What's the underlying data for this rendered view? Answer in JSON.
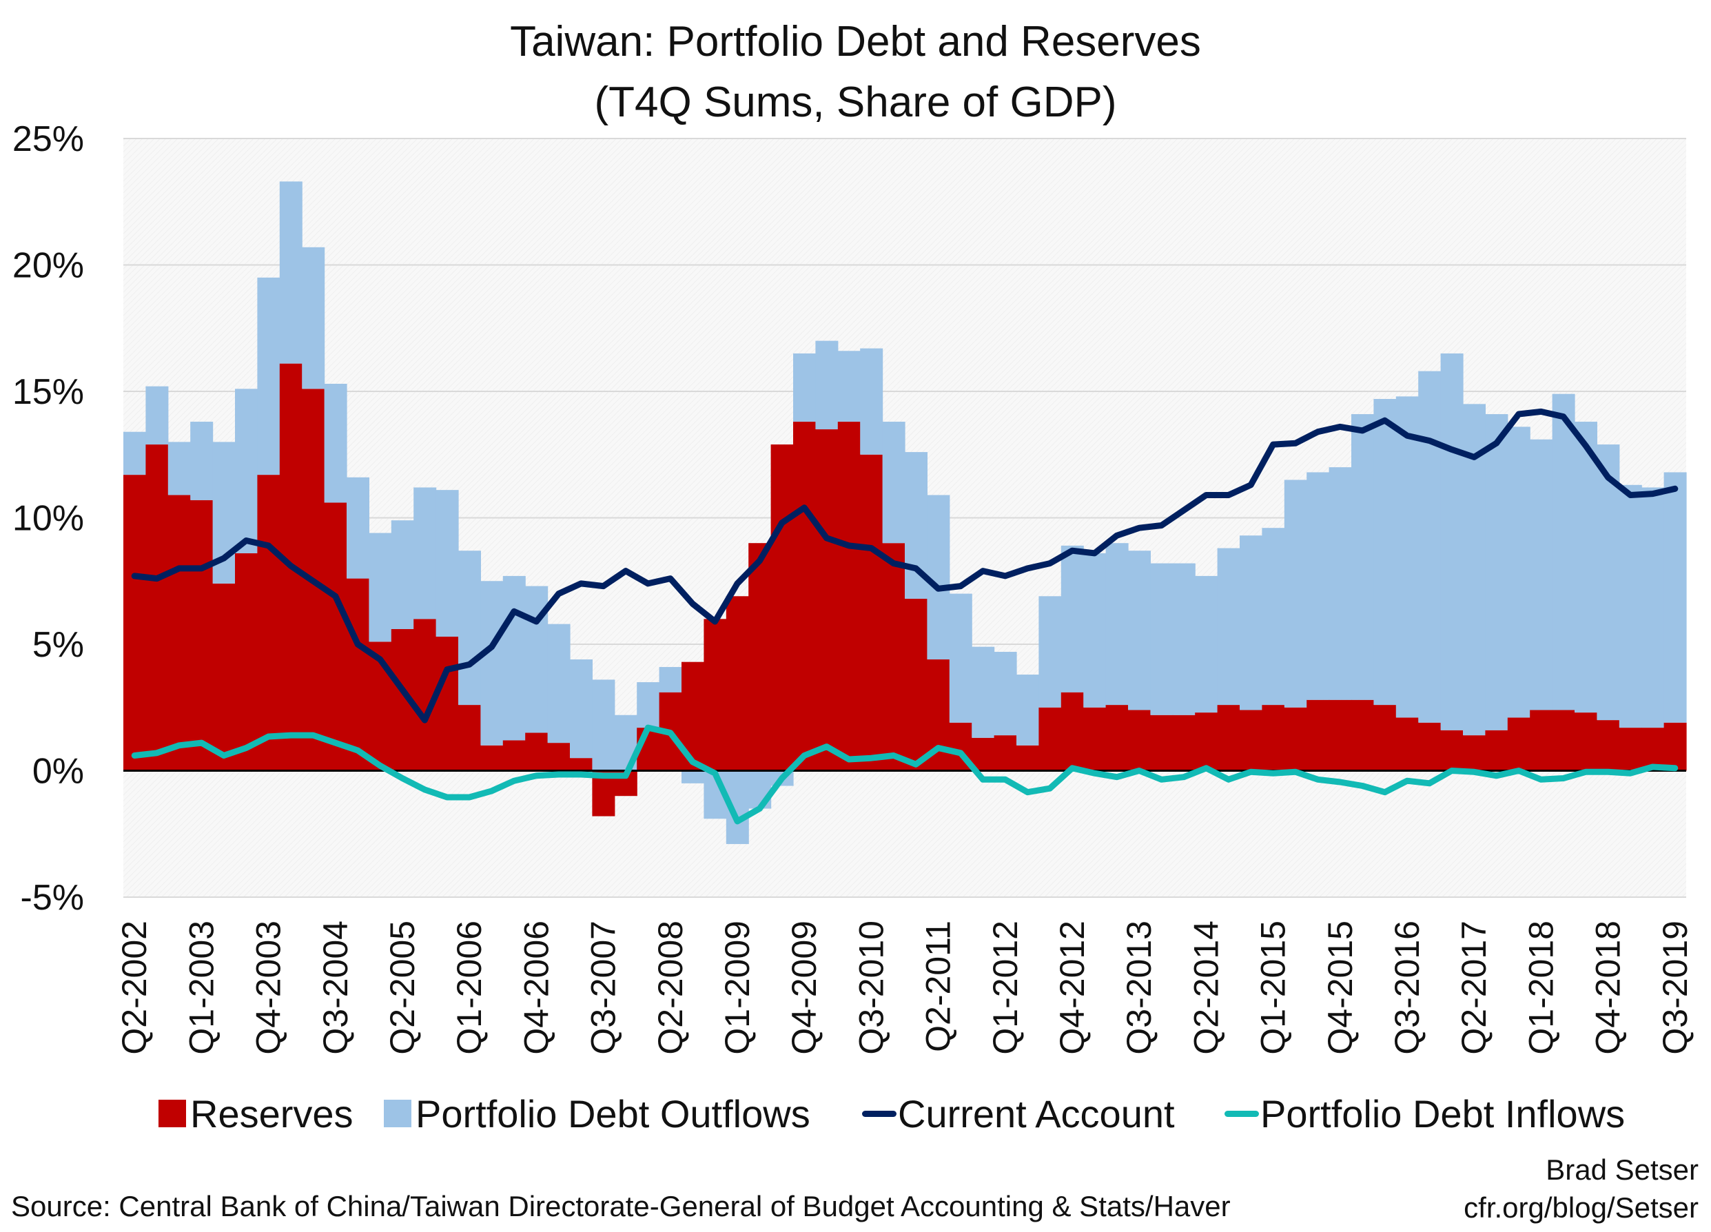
{
  "chart_data": {
    "type": "bar",
    "title": "Taiwan: Portfolio Debt and Reserves",
    "subtitle": "(T4Q Sums, Share of GDP)",
    "xlabel": "",
    "ylabel": "",
    "ylim": [
      -5,
      25
    ],
    "y_ticks": [
      "25%",
      "20%",
      "15%",
      "10%",
      "5%",
      "0%",
      "-5%"
    ],
    "y_tick_values": [
      25,
      20,
      15,
      10,
      5,
      0,
      -5
    ],
    "grid": true,
    "legend_position": "bottom",
    "x_tick_labels": [
      "Q2-2002",
      "Q1-2003",
      "Q4-2003",
      "Q3-2004",
      "Q2-2005",
      "Q1-2006",
      "Q4-2006",
      "Q3-2007",
      "Q2-2008",
      "Q1-2009",
      "Q4-2009",
      "Q3-2010",
      "Q2-2011",
      "Q1-2012",
      "Q4-2012",
      "Q3-2013",
      "Q2-2014",
      "Q1-2015",
      "Q4-2015",
      "Q3-2016",
      "Q2-2017",
      "Q1-2018",
      "Q4-2018",
      "Q3-2019"
    ],
    "x_tick_every": 3,
    "series": [
      {
        "name": "Reserves",
        "kind": "stacked-bar",
        "color": "#c00000",
        "values": [
          11.7,
          12.9,
          10.9,
          10.7,
          7.4,
          8.6,
          11.7,
          16.1,
          15.1,
          10.6,
          7.6,
          5.1,
          5.6,
          6.0,
          5.3,
          2.6,
          1.0,
          1.2,
          1.5,
          1.1,
          0.5,
          -1.8,
          -1.0,
          1.7,
          3.1,
          4.3,
          6.0,
          6.9,
          9.0,
          12.9,
          13.8,
          13.5,
          13.8,
          12.5,
          9.0,
          6.8,
          4.4,
          1.9,
          1.3,
          1.4,
          1.0,
          2.5,
          3.1,
          2.5,
          2.6,
          2.4,
          2.2,
          2.2,
          2.3,
          2.6,
          2.4,
          2.6,
          2.5,
          2.8,
          2.8,
          2.8,
          2.6,
          2.1,
          1.9,
          1.6,
          1.4,
          1.6,
          2.1,
          2.4,
          2.4,
          2.3,
          2.0,
          1.7,
          1.7,
          1.9
        ]
      },
      {
        "name": "Portfolio Debt Outflows",
        "kind": "stacked-bar",
        "color": "#9dc3e6",
        "values": [
          1.7,
          2.3,
          2.1,
          3.1,
          5.6,
          6.5,
          7.8,
          7.2,
          5.6,
          4.7,
          4.0,
          4.3,
          4.3,
          5.2,
          5.8,
          6.1,
          6.5,
          6.5,
          5.8,
          4.7,
          3.9,
          3.6,
          2.2,
          1.8,
          1.0,
          -0.5,
          -1.9,
          -2.9,
          -1.5,
          -0.6,
          2.7,
          3.5,
          2.8,
          4.2,
          4.8,
          5.8,
          6.5,
          5.1,
          3.6,
          3.3,
          2.8,
          4.4,
          5.8,
          6.1,
          6.4,
          6.3,
          6.0,
          6.0,
          5.4,
          6.2,
          6.9,
          7.0,
          9.0,
          9.0,
          9.2,
          11.3,
          12.1,
          12.7,
          13.9,
          14.9,
          13.1,
          12.5,
          11.5,
          10.7,
          12.5,
          11.5,
          10.9,
          9.6,
          9.5,
          9.9
        ]
      },
      {
        "name": "Current Account",
        "kind": "line",
        "color": "#002060",
        "values": [
          7.7,
          7.6,
          8.0,
          8.0,
          8.4,
          9.1,
          8.9,
          8.1,
          7.5,
          6.9,
          5.0,
          4.4,
          3.2,
          2.0,
          4.0,
          4.2,
          4.9,
          6.3,
          5.9,
          7.0,
          7.4,
          7.3,
          7.9,
          7.4,
          7.6,
          6.6,
          5.9,
          7.4,
          8.3,
          9.8,
          10.4,
          9.2,
          8.9,
          8.8,
          8.2,
          8.0,
          7.2,
          7.3,
          7.9,
          7.7,
          8.0,
          8.2,
          8.7,
          8.6,
          9.3,
          9.6,
          9.7,
          10.3,
          10.9,
          10.9,
          11.3,
          12.9,
          12.95,
          13.4,
          13.6,
          13.45,
          13.85,
          13.25,
          13.05,
          12.7,
          12.4,
          12.95,
          14.1,
          14.2,
          14.0,
          12.85,
          11.6,
          10.9,
          10.95,
          11.15
        ]
      },
      {
        "name": "Portfolio Debt Inflows",
        "kind": "line",
        "color": "#12bab5",
        "values": [
          0.6,
          0.7,
          1.0,
          1.1,
          0.6,
          0.9,
          1.35,
          1.4,
          1.4,
          1.1,
          0.8,
          0.2,
          -0.3,
          -0.75,
          -1.05,
          -1.05,
          -0.8,
          -0.4,
          -0.2,
          -0.15,
          -0.15,
          -0.2,
          -0.2,
          1.7,
          1.5,
          0.35,
          -0.1,
          -2.0,
          -1.5,
          -0.3,
          0.6,
          0.95,
          0.45,
          0.5,
          0.6,
          0.25,
          0.9,
          0.7,
          -0.35,
          -0.35,
          -0.85,
          -0.7,
          0.1,
          -0.1,
          -0.25,
          0,
          -0.35,
          -0.25,
          0.1,
          -0.35,
          -0.05,
          -0.1,
          -0.05,
          -0.35,
          -0.45,
          -0.6,
          -0.85,
          -0.4,
          -0.5,
          0,
          -0.05,
          -0.2,
          0,
          -0.35,
          -0.3,
          -0.05,
          -0.05,
          -0.1,
          0.15,
          0.1
        ]
      }
    ]
  },
  "legend": {
    "reserves": "Reserves",
    "outflows": "Portfolio Debt Outflows",
    "current_account": "Current Account",
    "inflows": "Portfolio Debt Inflows"
  },
  "footer": {
    "source": "Source: Central Bank of China/Taiwan Directorate-General of Budget Accounting & Stats/Haver",
    "author": "Brad Setser",
    "site": "cfr.org/blog/Setser"
  }
}
